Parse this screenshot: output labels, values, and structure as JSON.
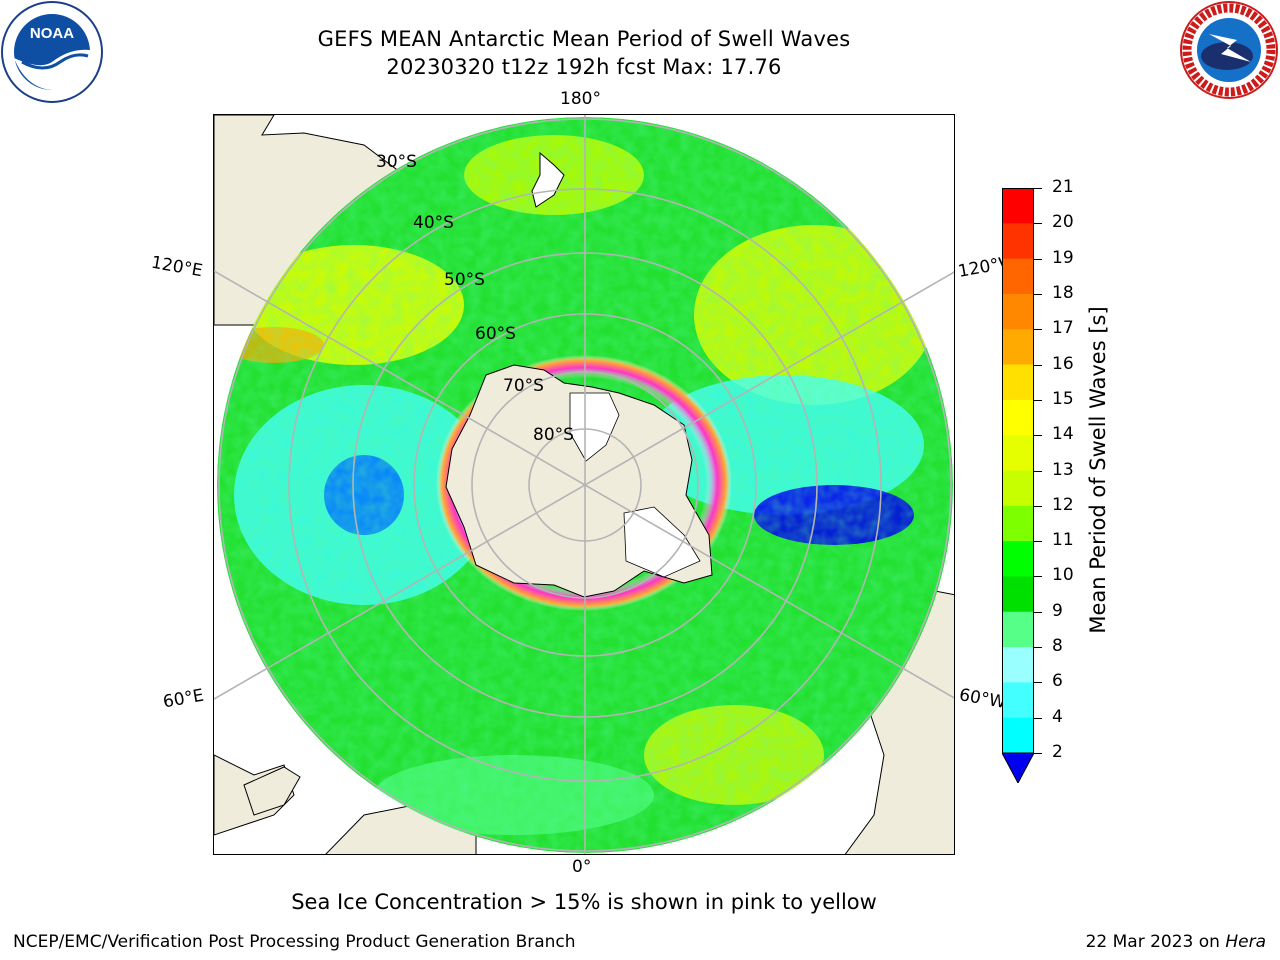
{
  "header": {
    "title_line1": "GEFS MEAN Antarctic Mean Period of Swell Waves",
    "title_line2": "20230320 t12z 192h fcst   Max: 17.76"
  },
  "logos": {
    "left": "NOAA",
    "right": "NATIONAL WEATHER SERVICE"
  },
  "map": {
    "projection": "south-polar-stereographic",
    "longitude_labels": {
      "top": "180°",
      "bottom": "0°",
      "left_upper": "120°E",
      "left_lower": "60°E",
      "right_upper": "120°W",
      "right_lower": "60°W"
    },
    "latitude_labels": [
      "30°S",
      "40°S",
      "50°S",
      "60°S",
      "70°S",
      "80°S"
    ],
    "colors": {
      "land": "#efecdc",
      "ocean_dominant": "#22e030",
      "grid": "#b4b4b4",
      "sea_ice": "#ff33cc"
    }
  },
  "colorbar": {
    "label": "Mean Period of Swell Waves [s]",
    "ticks": [
      "21",
      "20",
      "19",
      "18",
      "17",
      "16",
      "15",
      "14",
      "13",
      "12",
      "11",
      "10",
      "9",
      "8",
      "6",
      "4",
      "2"
    ],
    "colors": [
      "#ff0000",
      "#ff3300",
      "#ff6600",
      "#ff8800",
      "#ffaa00",
      "#ffe000",
      "#ffff00",
      "#e6ff00",
      "#c8ff00",
      "#7dff00",
      "#00ff00",
      "#00e000",
      "#55ff88",
      "#99ffff",
      "#44ffff",
      "#00ffff",
      "#0077ff",
      "#0000ee"
    ]
  },
  "caption": "Sea Ice Concentration > 15% is shown in pink to yellow",
  "footer": {
    "left": "NCEP/EMC/Verification Post Processing Product Generation Branch",
    "right_date": "22 Mar 2023 on ",
    "right_machine": "Hera"
  }
}
